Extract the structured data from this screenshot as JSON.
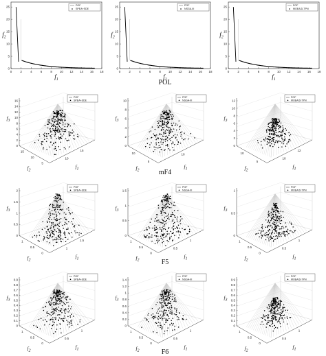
{
  "rows": [
    {
      "caption": "POL",
      "panels": [
        {
          "legend": [
            "POF",
            "SPEA+SDE"
          ]
        },
        {
          "legend": [
            "POF",
            "NSGA-III"
          ]
        },
        {
          "legend": [
            "POF",
            "MOEA/D-TPN"
          ]
        }
      ],
      "x_ticks": [
        "0",
        "2",
        "4",
        "6",
        "8",
        "10",
        "12",
        "14",
        "16",
        "18"
      ],
      "y_ticks": [
        "0",
        "5",
        "10",
        "15",
        "20",
        "25"
      ],
      "xlabel": "f1",
      "ylabel": "f2"
    },
    {
      "caption": "mF4",
      "panels": [
        {
          "legend": [
            "POF",
            "SPEA+SDE"
          ],
          "z_ticks": [
            "0",
            "2",
            "4",
            "6",
            "8",
            "10",
            "12",
            "14",
            "16"
          ],
          "f2_ticks": [
            "15",
            "10",
            "5"
          ],
          "f1_ticks": [
            "10",
            "15"
          ]
        },
        {
          "legend": [
            "POF",
            "NSGA-III"
          ],
          "z_ticks": [
            "0",
            "2",
            "4",
            "6",
            "8",
            "10"
          ],
          "f2_ticks": [
            "10",
            "5"
          ],
          "f1_ticks": [
            "10"
          ]
        },
        {
          "legend": [
            "POF",
            "MOEA/D-TPN"
          ],
          "z_ticks": [
            "0",
            "2",
            "4",
            "6",
            "8",
            "10",
            "12"
          ],
          "f2_ticks": [
            "10",
            "5"
          ],
          "f1_ticks": [
            "10",
            "12"
          ]
        }
      ],
      "xlabel": "f1",
      "ylabel": "f2",
      "zlabel": "f3"
    },
    {
      "caption": "F5",
      "panels": [
        {
          "legend": [
            "POF",
            "SPEA+SDE"
          ],
          "z_ticks": [
            "0",
            "0.5",
            "1",
            "1.5",
            "2"
          ],
          "f2_ticks": [
            "1",
            "0.5",
            "0"
          ],
          "f1_ticks": [
            "1",
            "1.5"
          ]
        },
        {
          "legend": [
            "POF",
            "NSGA-III"
          ],
          "z_ticks": [
            "0",
            "0.5",
            "1",
            "1.5"
          ],
          "f2_ticks": [
            "1",
            "0.5",
            "0"
          ],
          "f1_ticks": [
            "0.5",
            "1"
          ]
        },
        {
          "legend": [
            "POF",
            "MOEA/D-TPN"
          ],
          "z_ticks": [
            "0",
            "0.5",
            "1"
          ],
          "f2_ticks": [
            "1",
            "0.5",
            "0"
          ],
          "f1_ticks": [
            "0.5",
            "1"
          ]
        }
      ],
      "xlabel": "f1",
      "ylabel": "f2",
      "zlabel": "f3"
    },
    {
      "caption": "F6",
      "panels": [
        {
          "legend": [
            "POF",
            "SPEA+SDE"
          ],
          "z_ticks": [
            "0",
            "0.1",
            "0.2",
            "0.3",
            "0.4",
            "0.5",
            "0.6",
            "0.7",
            "0.8",
            "0.9"
          ],
          "f2_ticks": [
            "1",
            "0.5",
            "0"
          ],
          "f1_ticks": [
            "0.5",
            "1"
          ]
        },
        {
          "legend": [
            "POF",
            "NSGA-III"
          ],
          "z_ticks": [
            "0",
            "0.2",
            "0.4",
            "0.6",
            "0.8",
            "1",
            "1.2",
            "1.4"
          ],
          "f2_ticks": [
            "1",
            "0.5",
            "0"
          ],
          "f1_ticks": [
            "0.5",
            "1"
          ]
        },
        {
          "legend": [
            "POF",
            "MOEA/D-TPN"
          ],
          "z_ticks": [
            "0",
            "0.1",
            "0.2",
            "0.3",
            "0.4",
            "0.5",
            "0.6",
            "0.7",
            "0.8",
            "0.9"
          ],
          "f2_ticks": [
            "1",
            "0.5",
            "0"
          ],
          "f1_ticks": [
            "0.5",
            "1"
          ]
        }
      ],
      "xlabel": "f1",
      "ylabel": "f2",
      "zlabel": "f3"
    }
  ]
}
